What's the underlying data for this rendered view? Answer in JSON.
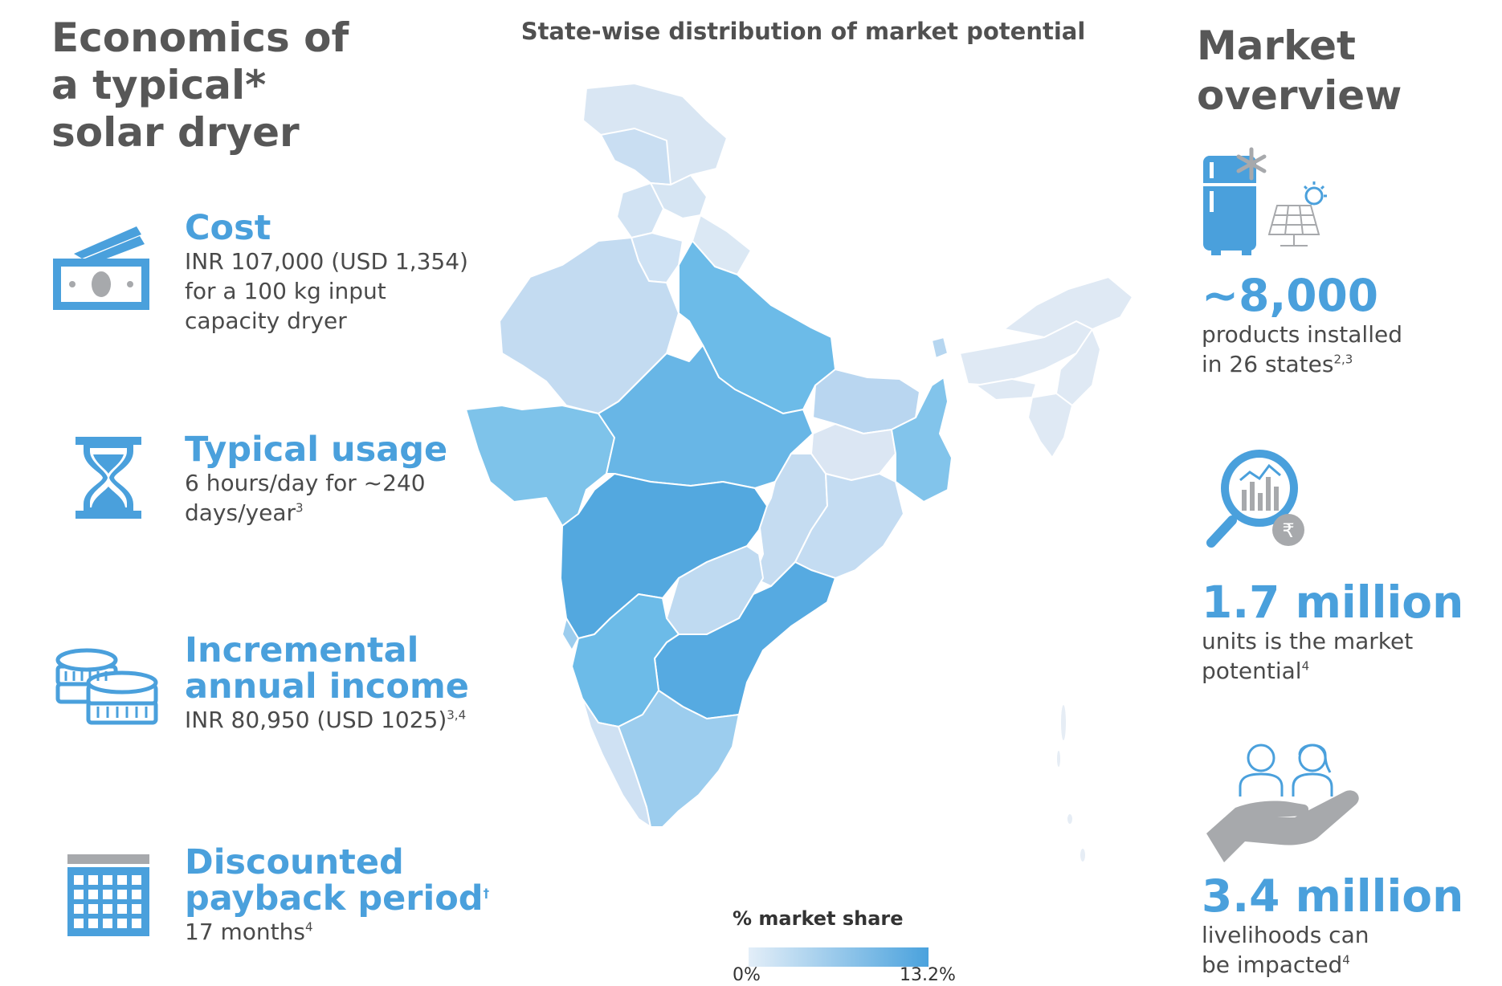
{
  "left": {
    "title_lines": [
      "Economics of",
      "a typical*",
      "solar dryer"
    ],
    "items": [
      {
        "icon": "cash-icon",
        "heading_lines": [
          "Cost"
        ],
        "body_lines": [
          "INR 107,000 (USD 1,354)",
          "for a 100 kg input",
          "capacity dryer"
        ],
        "body_sup": ""
      },
      {
        "icon": "hourglass-icon",
        "heading_lines": [
          "Typical usage"
        ],
        "body_lines": [
          "6 hours/day for ~240",
          "days/year"
        ],
        "body_sup": "3"
      },
      {
        "icon": "coins-icon",
        "heading_lines": [
          "Incremental",
          "annual income"
        ],
        "body_lines": [
          "INR 80,950 (USD 1025)"
        ],
        "body_sup": "3,4"
      },
      {
        "icon": "calendar-icon",
        "heading_lines": [
          "Discounted",
          "payback period"
        ],
        "heading_sup": "†",
        "body_lines": [
          "17 months"
        ],
        "body_sup": "4"
      }
    ]
  },
  "map": {
    "title": "State-wise distribution of market potential",
    "legend": {
      "title": "% market share",
      "min_label": "0%",
      "max_label": "13.2%",
      "color_low": "#e3eef8",
      "color_high": "#4aa2dd"
    }
  },
  "right": {
    "title_lines": [
      "Market",
      "overview"
    ],
    "stats": [
      {
        "icon": "solar-fridge-icon",
        "value": "~8,000",
        "desc_lines": [
          "products installed",
          "in 26 states"
        ],
        "desc_sup": "2,3"
      },
      {
        "icon": "magnifier-chart-icon",
        "value": "1.7 million",
        "desc_lines": [
          "units is the market",
          "potential"
        ],
        "desc_sup": "4"
      },
      {
        "icon": "hand-people-icon",
        "value": "3.4 million",
        "desc_lines": [
          "livelihoods can",
          "be impacted"
        ],
        "desc_sup": "4"
      }
    ]
  },
  "colors": {
    "accent_blue": "#4aa0dc",
    "heading_gray": "#575757",
    "icon_gray": "#a7a9ac"
  }
}
